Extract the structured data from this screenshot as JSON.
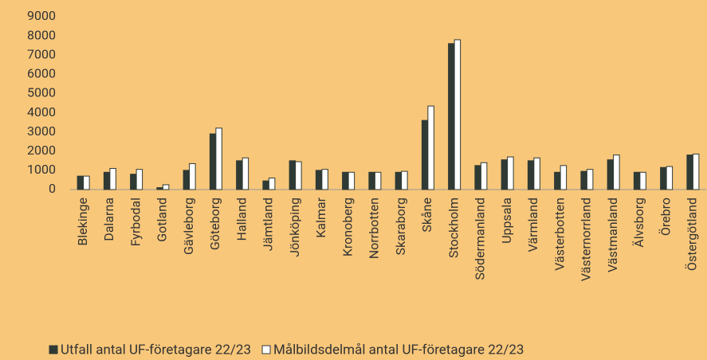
{
  "chart_data": {
    "type": "bar",
    "categories": [
      "Blekinge",
      "Dalarna",
      "Fyrbodal",
      "Gotland",
      "Gävleborg",
      "Göteborg",
      "Halland",
      "Jämtland",
      "Jönköping",
      "Kalmar",
      "Kronoberg",
      "Norrbotten",
      "Skaraborg",
      "Skåne",
      "Stockholm",
      "Södermanland",
      "Uppsala",
      "Värmland",
      "Västerbotten",
      "Västernorrland",
      "Västmanland",
      "Älvsborg",
      "Örebro",
      "Östergötland"
    ],
    "series": [
      {
        "name": "Utfall antal UF-företagare 22/23",
        "color": "#2f3a34",
        "values": [
          700,
          900,
          800,
          100,
          1000,
          2900,
          1500,
          450,
          1500,
          1000,
          900,
          900,
          900,
          3600,
          7600,
          1250,
          1550,
          1500,
          900,
          950,
          1550,
          900,
          1150,
          1800
        ]
      },
      {
        "name": "Målbildsdelmål antal UF-företagare 22/23",
        "color": "#ffffff",
        "values": [
          700,
          1100,
          1050,
          250,
          1350,
          3200,
          1650,
          600,
          1450,
          1050,
          900,
          900,
          950,
          4350,
          7800,
          1400,
          1700,
          1650,
          1250,
          1050,
          1800,
          900,
          1200,
          1850
        ]
      }
    ],
    "ylim": [
      0,
      9000
    ],
    "yticks": [
      0,
      1000,
      2000,
      3000,
      4000,
      5000,
      6000,
      7000,
      8000,
      9000
    ],
    "grid": false,
    "legend": "bottom"
  }
}
